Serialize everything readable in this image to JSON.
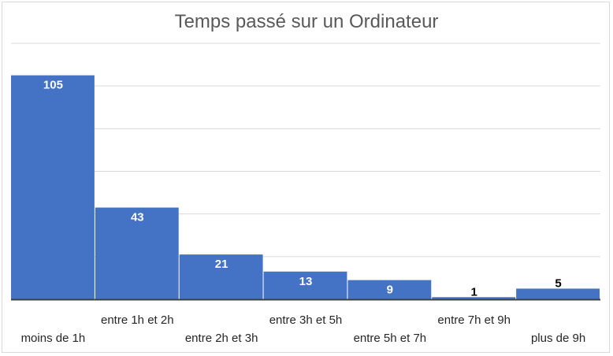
{
  "chart_data": {
    "type": "bar",
    "title": "Temps passé sur un Ordinateur",
    "categories": [
      "moins de 1h",
      "entre 1h et 2h",
      "entre 2h et 3h",
      "entre 3h et 5h",
      "entre 5h et 7h",
      "entre 7h et 9h",
      "plus de 9h"
    ],
    "values": [
      105,
      43,
      21,
      13,
      9,
      1,
      5
    ],
    "xlabel": "",
    "ylabel": "",
    "ylim": [
      0,
      120
    ],
    "grid": true,
    "legend": "none",
    "bar_color": "#4472C4",
    "gridline_color": "#d9d9d9",
    "axis_color": "#404040"
  }
}
